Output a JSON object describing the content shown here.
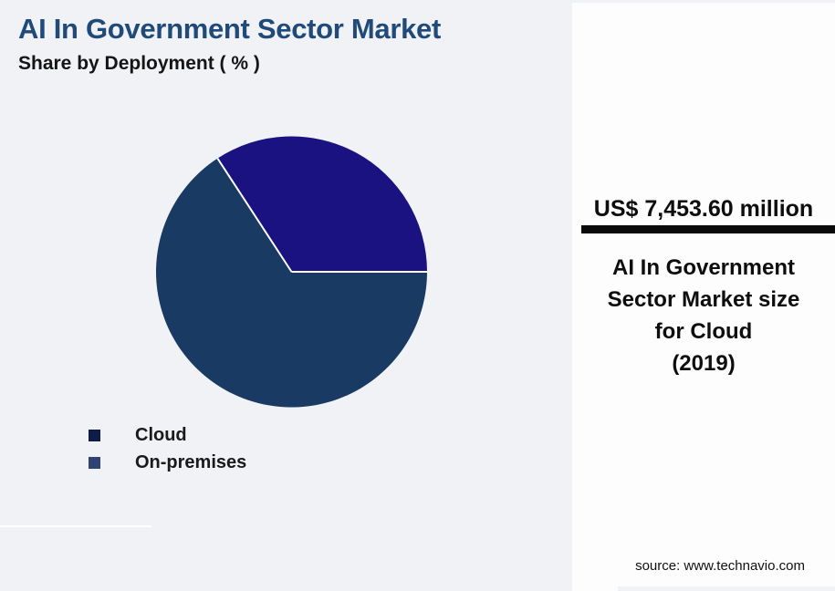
{
  "header": {
    "title": "AI In Government Sector Market",
    "subtitle": "Share by Deployment ( % )"
  },
  "chart_data": {
    "type": "pie",
    "title": "AI In Government Sector Market",
    "subtitle": "Share by Deployment ( % )",
    "labels": [
      "Cloud",
      "On-premises"
    ],
    "values": [
      34.2,
      65.8
    ],
    "unit": "%",
    "slice_colors": [
      "#191280",
      "#193A62"
    ],
    "legend_swatch_colors": [
      "#0E1C46",
      "#2F4472"
    ],
    "legend_position": "bottom-left",
    "start_angle_deg": 0,
    "direction": "counterclockwise",
    "slice_divider_color": "#FFFFFF"
  },
  "panel": {
    "value": "US$ 7,453.60 million",
    "caption_lines": [
      "AI In Government",
      "Sector Market size",
      "for Cloud",
      "(2019)"
    ],
    "source": "source: www.technavio.com"
  },
  "colors": {
    "background": "#F1F2F5",
    "panel_background": "#FDFDFD",
    "title": "#204A7A",
    "divider_bar": "#0A0A0A",
    "text": "#111111"
  }
}
